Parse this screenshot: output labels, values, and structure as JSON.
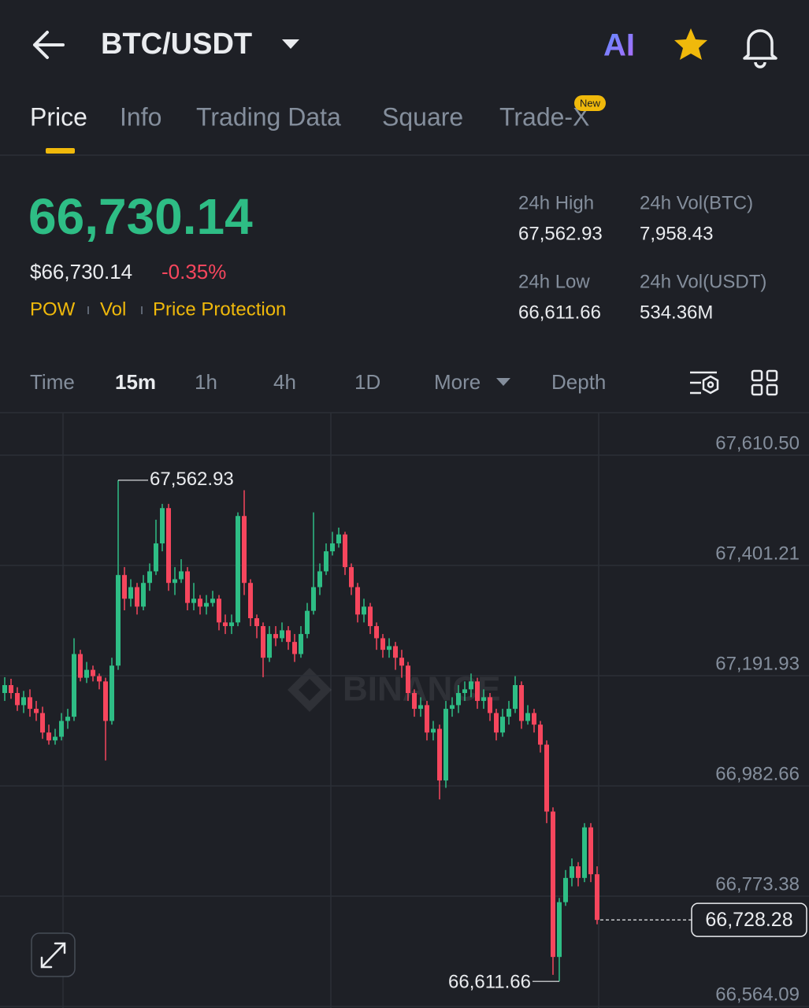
{
  "header": {
    "pair": "BTC/USDT",
    "ai_label": "AI"
  },
  "tabs": {
    "items": [
      "Price",
      "Info",
      "Trading Data",
      "Square",
      "Trade-X"
    ],
    "badge": "New"
  },
  "ticker": {
    "last": "66,730.14",
    "last_usd": "$66,730.14",
    "change": "-0.35%",
    "tags": [
      "POW",
      "Vol",
      "Price Protection"
    ]
  },
  "stats": [
    {
      "label": "24h High",
      "value": "67,562.93"
    },
    {
      "label": "24h Vol(BTC)",
      "value": "7,958.43"
    },
    {
      "label": "24h Low",
      "value": "66,611.66"
    },
    {
      "label": "24h Vol(USDT)",
      "value": "534.36M"
    }
  ],
  "intervals": [
    "Time",
    "15m",
    "1h",
    "4h",
    "1D",
    "More",
    "Depth"
  ],
  "chart_data": {
    "type": "candlestick",
    "up_color": "#2ebd85",
    "down_color": "#f6465d",
    "grid": true,
    "watermark": "BINANCE",
    "ylim": [
      66561.1,
      67691.2
    ],
    "yticks": [
      {
        "value": 67610.5,
        "label": "67,610.50"
      },
      {
        "value": 67401.21,
        "label": "67,401.21"
      },
      {
        "value": 67191.93,
        "label": "67,191.93"
      },
      {
        "value": 66982.66,
        "label": "66,982.66"
      },
      {
        "value": 66773.38,
        "label": "66,773.38"
      },
      {
        "value": 66564.09,
        "label": "66,564.09"
      }
    ],
    "high_marker": {
      "value": 67562.93,
      "label": "67,562.93"
    },
    "low_marker": {
      "value": 66611.66,
      "label": "66,611.66"
    },
    "last_price": {
      "value": 66728.28,
      "label": "66,728.28"
    },
    "open": [
      67159,
      67174,
      67159,
      67136,
      67151,
      67129,
      67121,
      67084,
      67069,
      67076,
      67106,
      67114,
      67233,
      67188,
      67203,
      67191,
      67181,
      67106,
      67211,
      67383,
      67338,
      67360,
      67323,
      67368,
      67390,
      67443,
      67510,
      67368,
      67375,
      67390,
      67330,
      67338,
      67323,
      67330,
      67338,
      67293,
      67286,
      67293,
      67495,
      67368,
      67301,
      67286,
      67226,
      67271,
      67263,
      67278,
      67256,
      67233,
      67271,
      67315,
      67360,
      67390,
      67428,
      67443,
      67460,
      67398,
      67360,
      67308,
      67323,
      67286,
      67263,
      67241,
      67248,
      67226,
      67211,
      67159,
      67129,
      67136,
      67084,
      67091,
      66993,
      67129,
      67136,
      67159,
      67166,
      67181,
      67144,
      67151,
      67121,
      67084,
      67114,
      67129,
      67174,
      67106,
      67121,
      67099,
      67061,
      66934,
      66658,
      66762,
      66808,
      66830,
      66808,
      66904,
      66815
    ],
    "high": [
      67189,
      67186,
      67170,
      67163,
      67166,
      67144,
      67133,
      67099,
      67091,
      67121,
      67129,
      67263,
      67241,
      67218,
      67211,
      67196,
      67188,
      67226,
      67562.93,
      67398,
      67375,
      67368,
      67383,
      67405,
      67488,
      67518,
      67518,
      67398,
      67413,
      67398,
      67368,
      67345,
      67345,
      67353,
      67345,
      67308,
      67308,
      67502,
      67544,
      67375,
      67308,
      67293,
      67286,
      67286,
      67293,
      67286,
      67271,
      67286,
      67330,
      67502,
      67405,
      67443,
      67465,
      67473,
      67465,
      67405,
      67368,
      67338,
      67330,
      67293,
      67271,
      67263,
      67256,
      67241,
      67218,
      67166,
      67151,
      67144,
      67106,
      67099,
      67144,
      67151,
      67174,
      67181,
      67196,
      67188,
      67166,
      67159,
      67129,
      67129,
      67144,
      67191,
      67181,
      67136,
      67129,
      67106,
      67069,
      66942,
      66770,
      66823,
      66845,
      66838,
      66912,
      66912,
      66830
    ],
    "low": [
      67144,
      67148,
      67125,
      67121,
      67114,
      67106,
      67072,
      67061,
      67061,
      67069,
      67091,
      67106,
      67181,
      67178,
      67181,
      67166,
      67031,
      67099,
      67203,
      67316,
      67323,
      67308,
      67316,
      67353,
      67383,
      67428,
      67353,
      67345,
      67368,
      67316,
      67316,
      67308,
      67308,
      67323,
      67278,
      67271,
      67271,
      67286,
      67345,
      67286,
      67263,
      67189,
      67218,
      67248,
      67256,
      67241,
      67218,
      67226,
      67263,
      67308,
      67345,
      67383,
      67420,
      67435,
      67383,
      67345,
      67293,
      67293,
      67271,
      67241,
      67226,
      67226,
      67203,
      67188,
      67144,
      67114,
      67114,
      67069,
      67069,
      66957,
      66979,
      67114,
      67121,
      67144,
      67151,
      67129,
      67129,
      67106,
      67069,
      67076,
      67099,
      67121,
      67091,
      67099,
      67084,
      67046,
      66912,
      66624,
      66611.66,
      66755,
      66792,
      66792,
      66800,
      66800,
      66720
    ],
    "close": [
      67174,
      67159,
      67136,
      67151,
      67129,
      67121,
      67084,
      67069,
      67076,
      67106,
      67114,
      67233,
      67188,
      67203,
      67191,
      67181,
      67106,
      67211,
      67383,
      67338,
      67360,
      67323,
      67368,
      67390,
      67443,
      67510,
      67368,
      67375,
      67390,
      67330,
      67338,
      67323,
      67330,
      67338,
      67293,
      67286,
      67293,
      67495,
      67368,
      67301,
      67286,
      67226,
      67271,
      67263,
      67278,
      67256,
      67233,
      67271,
      67315,
      67360,
      67390,
      67428,
      67443,
      67460,
      67398,
      67360,
      67308,
      67323,
      67286,
      67263,
      67241,
      67248,
      67226,
      67211,
      67159,
      67129,
      67136,
      67084,
      67091,
      66993,
      67129,
      67136,
      67159,
      67166,
      67181,
      67144,
      67151,
      67121,
      67084,
      67114,
      67129,
      67174,
      67106,
      67121,
      67099,
      67061,
      66934,
      66658,
      66762,
      66808,
      66830,
      66808,
      66904,
      66815,
      66728.28
    ]
  }
}
